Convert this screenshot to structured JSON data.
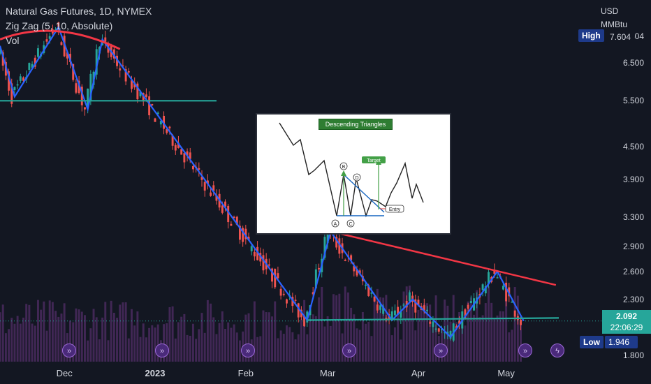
{
  "legend": {
    "symbol": "Natural Gas Futures, 1D, NYMEX",
    "indicator": "Zig Zag (5, 10, Absolute)",
    "volume": "Vol"
  },
  "axis": {
    "currency": "USD",
    "unit": "MMBtu",
    "price_labels": [
      "7.604",
      "6.500",
      "5.500",
      "4.500",
      "3.900",
      "3.300",
      "2.900",
      "2.600",
      "2.300",
      "1.800"
    ],
    "date_labels": [
      "Dec",
      "2023",
      "Feb",
      "Mar",
      "Apr",
      "May"
    ]
  },
  "markers": {
    "high_label": "High",
    "high_value": "7.604",
    "low_label": "Low",
    "low_value": "1.946",
    "last_price": "2.092",
    "countdown": "22:06:29"
  },
  "inset": {
    "title": "Descending Triangles",
    "target_label": "Target",
    "entry_label": "Entry",
    "point_labels": [
      "A",
      "B",
      "C",
      "D"
    ]
  },
  "colors": {
    "background": "#131722",
    "up": "#26a69a",
    "down": "#ef5350",
    "zigzag": "#2962ff",
    "trend_red": "#f23645",
    "support": "#26a69a",
    "volume": "#4a2a5e"
  },
  "chart_data": {
    "type": "candlestick",
    "title": "Natural Gas Futures, 1D, NYMEX",
    "ylabel": "USD / MMBtu",
    "yscale": "log",
    "ylim": [
      1.75,
      8.1
    ],
    "dates": [
      "2022-11",
      "2023-01",
      "2023-02",
      "2023-03",
      "2023-04",
      "2023-05"
    ],
    "x_range": [
      "2022-11-09",
      "2023-05-19"
    ],
    "high": 7.604,
    "low": 1.946,
    "last": 2.092,
    "zigzag": [
      {
        "date": "2022-11-09",
        "price": 7.0
      },
      {
        "date": "2022-11-14",
        "price": 5.6
      },
      {
        "date": "2022-11-29",
        "price": 7.6
      },
      {
        "date": "2022-12-09",
        "price": 5.3
      },
      {
        "date": "2022-12-14",
        "price": 7.2
      },
      {
        "date": "2023-02-22",
        "price": 2.1
      },
      {
        "date": "2023-03-02",
        "price": 3.1
      },
      {
        "date": "2023-03-23",
        "price": 2.1
      },
      {
        "date": "2023-03-30",
        "price": 2.3
      },
      {
        "date": "2023-04-12",
        "price": 1.95
      },
      {
        "date": "2023-04-28",
        "price": 2.6
      },
      {
        "date": "2023-05-07",
        "price": 2.092
      }
    ],
    "trendlines": [
      {
        "name": "arc-resistance",
        "points": [
          {
            "date": "2022-11-09",
            "price": 7.2
          },
          {
            "date": "2022-11-28",
            "price": 7.9
          },
          {
            "date": "2022-12-20",
            "price": 6.9
          }
        ]
      },
      {
        "name": "horizontal-support",
        "points": [
          {
            "date": "2022-11-09",
            "price": 5.5
          },
          {
            "date": "2023-01-22",
            "price": 5.5
          }
        ]
      },
      {
        "name": "descending-resistance",
        "points": [
          {
            "date": "2023-03-02",
            "price": 3.1
          },
          {
            "date": "2023-05-18",
            "price": 2.45
          }
        ]
      },
      {
        "name": "rising-support",
        "points": [
          {
            "date": "2023-02-22",
            "price": 2.1
          },
          {
            "date": "2023-05-19",
            "price": 2.12
          }
        ]
      }
    ]
  }
}
